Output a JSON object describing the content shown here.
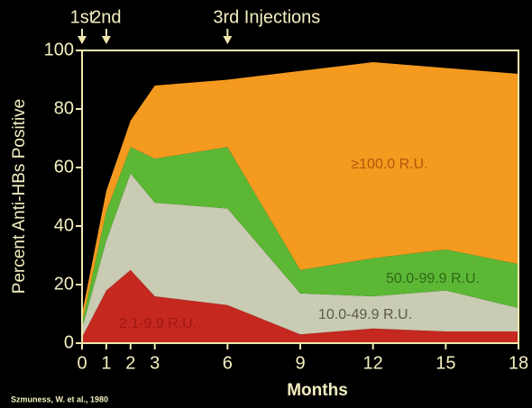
{
  "chart_data": {
    "type": "stacked_area",
    "annotations": [
      {
        "text": "1st",
        "x": 0
      },
      {
        "text": "2nd",
        "x": 1
      },
      {
        "text": "3rd Injections",
        "x": 6
      }
    ],
    "x_label": "Months",
    "y_label": "Percent Anti-HBs Positive",
    "source": "Szmuness, W. et al., 1980",
    "x": [
      0,
      1,
      2,
      3,
      6,
      9,
      12,
      15,
      18
    ],
    "series": [
      {
        "name": "2.1-9.9 R.U.",
        "color": "#c4281f",
        "values": [
          2,
          18,
          25,
          16,
          13,
          3,
          5,
          4,
          4
        ]
      },
      {
        "name": "10.0-49.9 R.U.",
        "color": "#c9cbb3",
        "values": [
          3,
          17,
          33,
          32,
          33,
          14,
          11,
          14,
          8
        ]
      },
      {
        "name": "50.0-99.9 R.U.",
        "color": "#5cb735",
        "values": [
          2,
          10,
          9,
          15,
          21,
          8,
          13,
          14,
          15
        ]
      },
      {
        "name": "≥100.0 R.U.",
        "color": "#f39a1f",
        "values": [
          3,
          7,
          9,
          25,
          23,
          68,
          67,
          62,
          65
        ]
      }
    ],
    "xlim": [
      0,
      18
    ],
    "xticks": [
      0,
      1,
      2,
      3,
      6,
      9,
      12,
      15,
      18
    ],
    "ylim": [
      0,
      100
    ],
    "yticks": [
      0,
      20,
      40,
      60,
      80,
      100
    ]
  }
}
